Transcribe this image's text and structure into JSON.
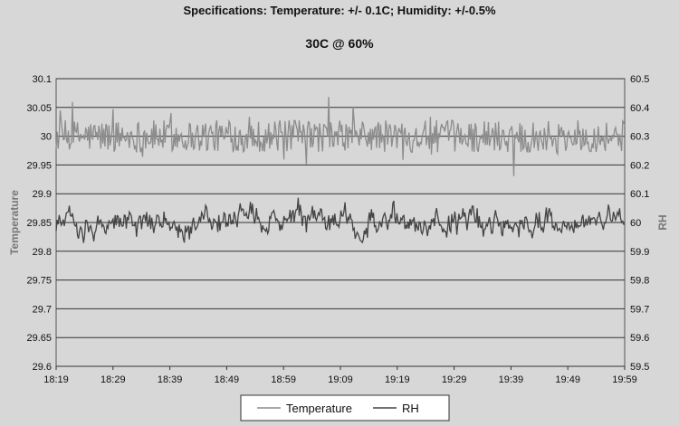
{
  "chart_data": {
    "type": "line",
    "title": "Specifications: Temperature: +/- 0.1C; Humidity: +/-0.5%",
    "subtitle": "30C @ 60%",
    "ylabel": "Temperature",
    "y2label": "RH",
    "x_ticks": [
      "18:19",
      "18:29",
      "18:39",
      "18:49",
      "18:59",
      "19:09",
      "19:19",
      "19:29",
      "19:39",
      "19:49",
      "19:59"
    ],
    "ylim": [
      29.6,
      30.1
    ],
    "y_ticks": [
      "29.6",
      "29.65",
      "29.7",
      "29.75",
      "29.8",
      "29.85",
      "29.9",
      "29.95",
      "30",
      "30.05",
      "30.1"
    ],
    "y2lim": [
      59.5,
      60.5
    ],
    "y2_ticks": [
      "59.5",
      "59.6",
      "59.7",
      "59.8",
      "59.9",
      "60",
      "60.1",
      "60.2",
      "60.3",
      "60.4",
      "60.5"
    ],
    "grid": true,
    "legend_position": "bottom",
    "legend": [
      "Temperature",
      "RH"
    ],
    "series": [
      {
        "name": "Temperature",
        "axis": "left",
        "color": "#8c8c8c",
        "mean": 30.0,
        "noise": 0.028
      },
      {
        "name": "RH",
        "axis": "right",
        "color": "#444444",
        "mean": 60.0,
        "noise": 0.045
      }
    ]
  }
}
